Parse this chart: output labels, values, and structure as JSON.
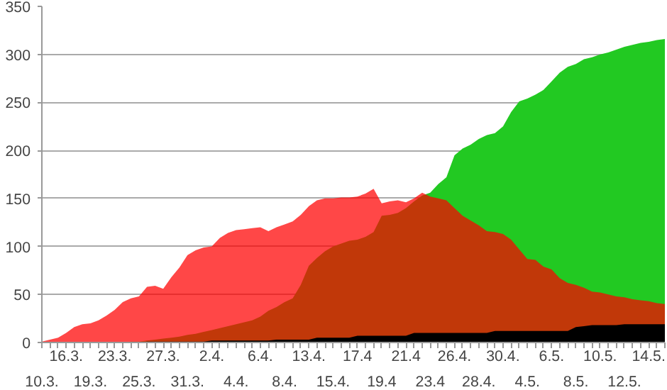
{
  "chart_data": {
    "type": "area",
    "categories": [
      "10.3.",
      null,
      null,
      "16.3.",
      null,
      null,
      "19.3.",
      null,
      null,
      "23.3.",
      null,
      null,
      "25.3.",
      null,
      null,
      "27.3.",
      null,
      null,
      "31.3.",
      null,
      null,
      "2.4.",
      null,
      null,
      "4.4.",
      null,
      null,
      "6.4.",
      null,
      null,
      "8.4.",
      null,
      null,
      "13.4.",
      null,
      null,
      "15.4.",
      null,
      null,
      "17.4",
      null,
      null,
      "19.4",
      null,
      null,
      "21.4",
      null,
      null,
      "23.4",
      null,
      null,
      "26.4.",
      null,
      null,
      "28.4.",
      null,
      null,
      "30.4.",
      null,
      null,
      "4.5.",
      null,
      null,
      "6.5.",
      null,
      null,
      "8.5.",
      null,
      null,
      "10.5.",
      null,
      null,
      "12.5.",
      null,
      null,
      "14.5.",
      null,
      null
    ],
    "series": [
      {
        "color": "#22c922",
        "values": [
          0,
          0,
          0,
          0,
          0,
          0,
          0,
          0,
          0,
          0,
          0,
          1,
          1,
          2,
          3,
          4,
          5,
          6,
          8,
          9,
          11,
          13,
          15,
          17,
          19,
          21,
          23,
          27,
          33,
          37,
          42,
          46,
          60,
          80,
          88,
          95,
          100,
          103,
          106,
          107,
          110,
          115,
          132,
          133,
          135,
          140,
          147,
          153,
          156,
          165,
          172,
          195,
          202,
          206,
          212,
          216,
          218,
          225,
          240,
          251,
          254,
          258,
          263,
          272,
          281,
          287,
          290,
          295,
          297,
          300,
          302,
          305,
          308,
          310,
          312,
          313,
          315,
          316
        ]
      },
      {
        "color": "#ff0000",
        "values": [
          1,
          3,
          5,
          10,
          16,
          19,
          20,
          23,
          28,
          34,
          42,
          46,
          48,
          58,
          59,
          56,
          68,
          78,
          91,
          96,
          99,
          100,
          109,
          114,
          117,
          118,
          119,
          120,
          116,
          120,
          123,
          126,
          133,
          142,
          148,
          150,
          150,
          151,
          151,
          152,
          155,
          160,
          145,
          147,
          148,
          146,
          150,
          156,
          152,
          150,
          148,
          140,
          132,
          127,
          122,
          116,
          115,
          113,
          107,
          97,
          87,
          86,
          79,
          76,
          67,
          62,
          60,
          57,
          53,
          52,
          50,
          48,
          47,
          45,
          44,
          43,
          41,
          40
        ]
      },
      {
        "color": "#000000",
        "values": [
          0,
          0,
          0,
          0,
          0,
          0,
          0,
          0,
          0,
          0,
          0,
          0,
          0,
          1,
          1,
          1,
          1,
          1,
          1,
          1,
          1,
          2,
          2,
          2,
          2,
          2,
          2,
          2,
          2,
          3,
          3,
          3,
          3,
          3,
          5,
          5,
          5,
          5,
          5,
          7,
          7,
          7,
          7,
          7,
          7,
          7,
          10,
          10,
          10,
          10,
          10,
          10,
          10,
          10,
          10,
          10,
          12,
          12,
          12,
          12,
          12,
          12,
          12,
          12,
          12,
          12,
          16,
          17,
          18,
          18,
          18,
          18,
          19,
          19,
          19,
          19,
          19,
          19
        ]
      }
    ],
    "ylim": [
      0,
      350
    ],
    "yticks": [
      0,
      50,
      100,
      150,
      200,
      250,
      300,
      350
    ],
    "grid": "y"
  }
}
